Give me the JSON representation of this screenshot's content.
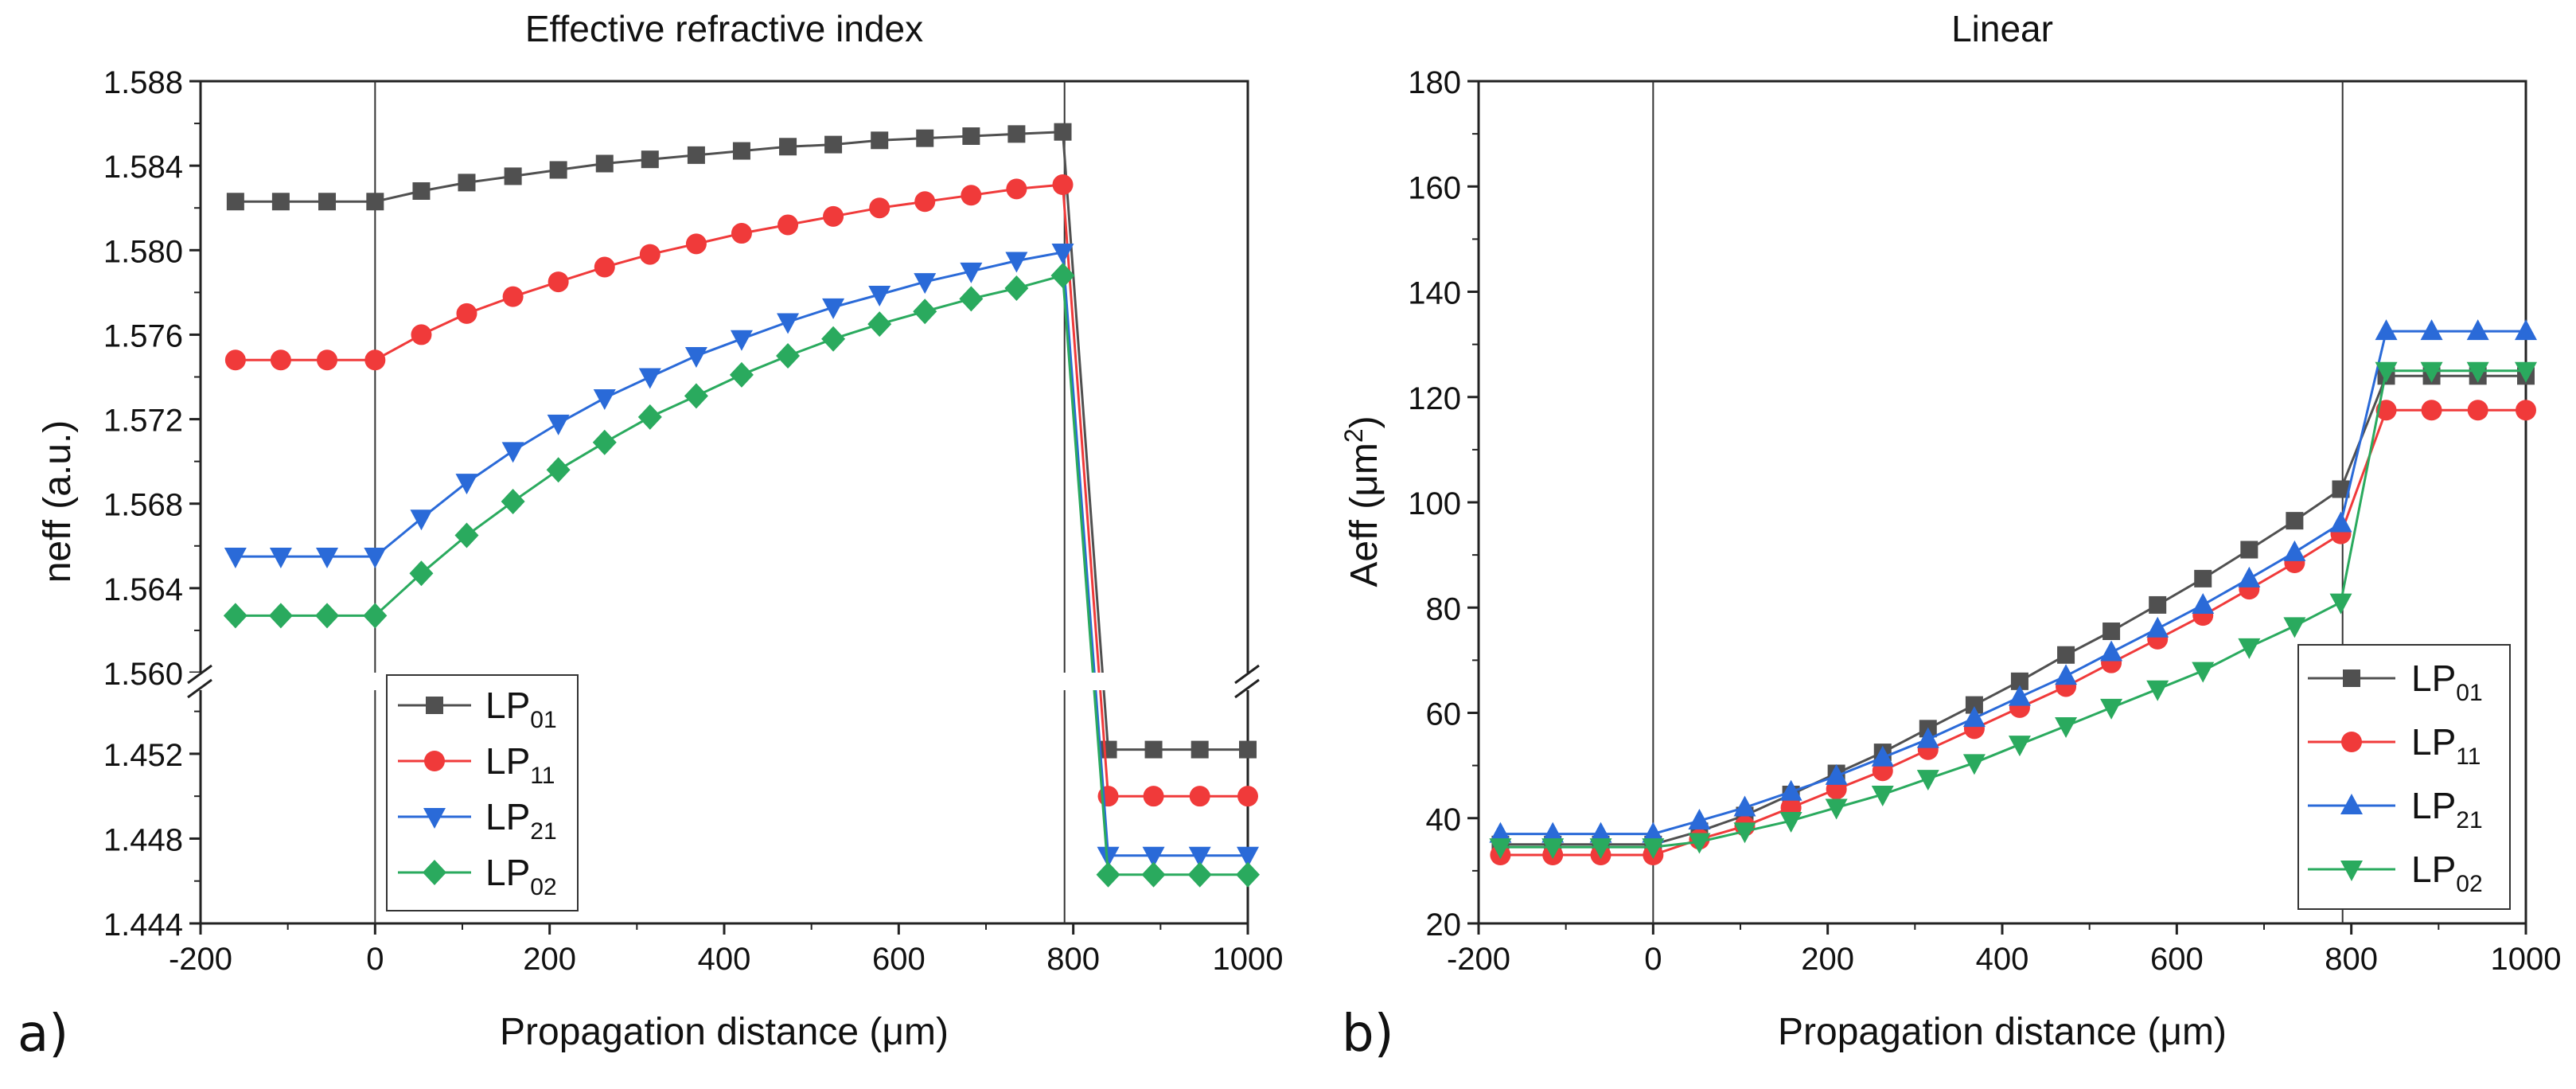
{
  "chart_data": [
    {
      "panel": "a)",
      "type": "line",
      "title": "Effective refractive index",
      "xlabel": "Propagation distance (μm)",
      "ylabel": "neff (a.u.)",
      "xlim": [
        -200,
        1000
      ],
      "xticks": [
        -200,
        0,
        200,
        400,
        600,
        800,
        1000
      ],
      "xtick_labels": [
        "-200",
        "0",
        "200",
        "400",
        "600",
        "800",
        "1000"
      ],
      "ylim_upper": [
        1.56,
        1.588
      ],
      "yticks_upper": [
        1.56,
        1.564,
        1.568,
        1.572,
        1.576,
        1.58,
        1.584,
        1.588
      ],
      "ytick_labels_upper": [
        "1.560",
        "1.564",
        "1.568",
        "1.572",
        "1.576",
        "1.580",
        "1.584",
        "1.588"
      ],
      "ylim_lower": [
        1.444,
        1.455
      ],
      "yticks_lower": [
        1.444,
        1.448,
        1.452
      ],
      "ytick_labels_lower": [
        "1.444",
        "1.448",
        "1.452"
      ],
      "axis_break": "1.455 to 1.560",
      "vlines": [
        0,
        790
      ],
      "legend": "lower-left",
      "series": [
        {
          "name": "LP01",
          "label_base": "LP",
          "label_sub": "01",
          "color": "#505050",
          "marker": "square",
          "x": [
            -160,
            -108,
            -55,
            0,
            53,
            105,
            158,
            210,
            263,
            315,
            368,
            420,
            473,
            525,
            578,
            630,
            683,
            735,
            788,
            840,
            892,
            945,
            1000
          ],
          "y": [
            1.5823,
            1.5823,
            1.5823,
            1.5823,
            1.5828,
            1.5832,
            1.5835,
            1.5838,
            1.5841,
            1.5843,
            1.5845,
            1.5847,
            1.5849,
            1.585,
            1.5852,
            1.5853,
            1.5854,
            1.5855,
            1.5856,
            1.4522,
            1.4522,
            1.4522,
            1.4522
          ]
        },
        {
          "name": "LP11",
          "label_base": "LP",
          "label_sub": "11",
          "color": "#f03a3a",
          "marker": "circle",
          "x": [
            -160,
            -108,
            -55,
            0,
            53,
            105,
            158,
            210,
            263,
            315,
            368,
            420,
            473,
            525,
            578,
            630,
            683,
            735,
            788,
            840,
            892,
            945,
            1000
          ],
          "y": [
            1.5748,
            1.5748,
            1.5748,
            1.5748,
            1.576,
            1.577,
            1.5778,
            1.5785,
            1.5792,
            1.5798,
            1.5803,
            1.5808,
            1.5812,
            1.5816,
            1.582,
            1.5823,
            1.5826,
            1.5829,
            1.5831,
            1.45,
            1.45,
            1.45,
            1.45
          ]
        },
        {
          "name": "LP21",
          "label_base": "LP",
          "label_sub": "21",
          "color": "#2a6ad8",
          "marker": "triangle-down",
          "x": [
            -160,
            -108,
            -55,
            0,
            53,
            105,
            158,
            210,
            263,
            315,
            368,
            420,
            473,
            525,
            578,
            630,
            683,
            735,
            788,
            840,
            892,
            945,
            1000
          ],
          "y": [
            1.5655,
            1.5655,
            1.5655,
            1.5655,
            1.5673,
            1.569,
            1.5705,
            1.5718,
            1.573,
            1.574,
            1.575,
            1.5758,
            1.5766,
            1.5773,
            1.5779,
            1.5785,
            1.579,
            1.5795,
            1.5799,
            1.4472,
            1.4472,
            1.4472,
            1.4472
          ]
        },
        {
          "name": "LP02",
          "label_base": "LP",
          "label_sub": "02",
          "color": "#2aaa5e",
          "marker": "diamond",
          "x": [
            -160,
            -108,
            -55,
            0,
            53,
            105,
            158,
            210,
            263,
            315,
            368,
            420,
            473,
            525,
            578,
            630,
            683,
            735,
            788,
            840,
            892,
            945,
            1000
          ],
          "y": [
            1.5627,
            1.5627,
            1.5627,
            1.5627,
            1.5647,
            1.5665,
            1.5681,
            1.5696,
            1.5709,
            1.5721,
            1.5731,
            1.5741,
            1.575,
            1.5758,
            1.5765,
            1.5771,
            1.5777,
            1.5782,
            1.5788,
            1.4463,
            1.4463,
            1.4463,
            1.4463
          ]
        }
      ]
    },
    {
      "panel": "b)",
      "type": "line",
      "title": "Linear",
      "xlabel": "Propagation distance (μm)",
      "ylabel": "Aeff (μm²)",
      "ylabel_base": "Aeff (μm",
      "ylabel_sup": "2",
      "ylabel_end": ")",
      "xlim": [
        -200,
        1000
      ],
      "xticks": [
        -200,
        0,
        200,
        400,
        600,
        800,
        1000
      ],
      "xtick_labels": [
        "-200",
        "0",
        "200",
        "400",
        "600",
        "800",
        "1000"
      ],
      "ylim": [
        20,
        180
      ],
      "yticks": [
        20,
        40,
        60,
        80,
        100,
        120,
        140,
        160,
        180
      ],
      "ytick_labels": [
        "20",
        "40",
        "60",
        "80",
        "100",
        "120",
        "140",
        "160",
        "180"
      ],
      "vlines": [
        0,
        790
      ],
      "legend": "lower-right",
      "series": [
        {
          "name": "LP01",
          "label_base": "LP",
          "label_sub": "01",
          "color": "#505050",
          "marker": "square",
          "x": [
            -175,
            -115,
            -60,
            0,
            53,
            105,
            158,
            210,
            263,
            315,
            368,
            420,
            473,
            525,
            578,
            630,
            683,
            735,
            788,
            840,
            892,
            945,
            1000
          ],
          "y": [
            35,
            35,
            35,
            35,
            37.5,
            40.5,
            44.5,
            48.5,
            52.5,
            57,
            61.5,
            66,
            71,
            75.5,
            80.5,
            85.5,
            91,
            96.5,
            102.5,
            124,
            124,
            124,
            124
          ]
        },
        {
          "name": "LP11",
          "label_base": "LP",
          "label_sub": "11",
          "color": "#f03a3a",
          "marker": "circle",
          "x": [
            -175,
            -115,
            -60,
            0,
            53,
            105,
            158,
            210,
            263,
            315,
            368,
            420,
            473,
            525,
            578,
            630,
            683,
            735,
            788,
            840,
            892,
            945,
            1000
          ],
          "y": [
            33,
            33,
            33,
            33,
            36,
            38.5,
            42,
            45.5,
            49,
            53,
            57,
            61,
            65,
            69.5,
            74,
            78.5,
            83.5,
            88.5,
            94,
            117.5,
            117.5,
            117.5,
            117.5
          ]
        },
        {
          "name": "LP21",
          "label_base": "LP",
          "label_sub": "21",
          "color": "#2a6ad8",
          "marker": "triangle-up",
          "x": [
            -175,
            -115,
            -60,
            0,
            53,
            105,
            158,
            210,
            263,
            315,
            368,
            420,
            473,
            525,
            578,
            630,
            683,
            735,
            788,
            840,
            892,
            945,
            1000
          ],
          "y": [
            37,
            37,
            37,
            37,
            39.5,
            42,
            45,
            48,
            51.5,
            55,
            59,
            63,
            67,
            71.5,
            76,
            80.5,
            85.5,
            90.5,
            96,
            132.5,
            132.5,
            132.5,
            132.5
          ]
        },
        {
          "name": "LP02",
          "label_base": "LP",
          "label_sub": "02",
          "color": "#2aaa5e",
          "marker": "triangle-down",
          "x": [
            -175,
            -115,
            -60,
            0,
            53,
            105,
            158,
            210,
            263,
            315,
            368,
            420,
            473,
            525,
            578,
            630,
            683,
            735,
            788,
            840,
            892,
            945,
            1000
          ],
          "y": [
            34.5,
            34.5,
            34.5,
            34.5,
            35.5,
            37.5,
            39.5,
            42,
            44.5,
            47.5,
            50.5,
            54,
            57.5,
            61,
            64.5,
            68,
            72.5,
            76.5,
            81,
            125,
            125,
            125,
            125
          ]
        }
      ]
    }
  ]
}
